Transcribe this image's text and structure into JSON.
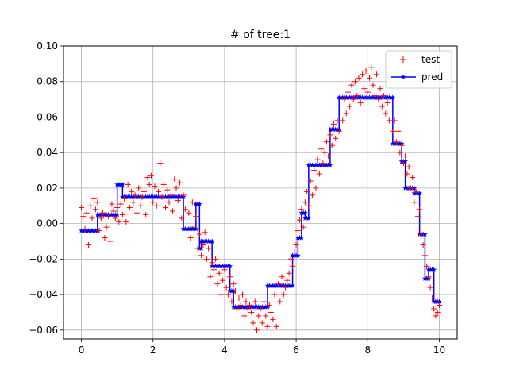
{
  "chart_data": {
    "type": "scatter",
    "title": "# of tree:1",
    "xlabel": "",
    "ylabel": "",
    "xlim": [
      -0.5,
      10.5
    ],
    "ylim": [
      -0.065,
      0.1
    ],
    "x_ticks": [
      0,
      2,
      4,
      6,
      8,
      10
    ],
    "x_tick_labels": [
      "0",
      "2",
      "4",
      "6",
      "8",
      "10"
    ],
    "y_ticks": [
      -0.06,
      -0.04,
      -0.02,
      0.0,
      0.02,
      0.04,
      0.06,
      0.08,
      0.1
    ],
    "y_tick_labels": [
      "−0.06",
      "−0.04",
      "−0.02",
      "0.00",
      "0.02",
      "0.04",
      "0.06",
      "0.08",
      "0.10"
    ],
    "grid": true,
    "legend_position": "top-right",
    "series": [
      {
        "name": "test",
        "marker": "+",
        "color": "#ff0000",
        "points": [
          [
            0.0,
            0.009
          ],
          [
            0.05,
            0.004
          ],
          [
            0.1,
            -0.003
          ],
          [
            0.15,
            0.006
          ],
          [
            0.2,
            -0.012
          ],
          [
            0.25,
            0.01
          ],
          [
            0.3,
            0.003
          ],
          [
            0.35,
            0.014
          ],
          [
            0.4,
            0.008
          ],
          [
            0.45,
            0.012
          ],
          [
            0.5,
            -0.004
          ],
          [
            0.55,
            0.003
          ],
          [
            0.6,
            0.006
          ],
          [
            0.65,
            -0.008
          ],
          [
            0.7,
            -0.002
          ],
          [
            0.75,
            0.004
          ],
          [
            0.8,
            -0.01
          ],
          [
            0.85,
            0.011
          ],
          [
            0.9,
            0.007
          ],
          [
            0.95,
            0.003
          ],
          [
            1.0,
            0.009
          ],
          [
            1.05,
            0.001
          ],
          [
            1.1,
            0.011
          ],
          [
            1.15,
            0.005
          ],
          [
            1.2,
            0.014
          ],
          [
            1.25,
            0.001
          ],
          [
            1.3,
            0.022
          ],
          [
            1.35,
            0.009
          ],
          [
            1.4,
            0.018
          ],
          [
            1.45,
            0.012
          ],
          [
            1.5,
            0.016
          ],
          [
            1.55,
            0.006
          ],
          [
            1.6,
            0.02
          ],
          [
            1.65,
            0.01
          ],
          [
            1.7,
            0.015
          ],
          [
            1.75,
            0.018
          ],
          [
            1.8,
            0.005
          ],
          [
            1.85,
            0.026
          ],
          [
            1.9,
            0.022
          ],
          [
            1.95,
            0.027
          ],
          [
            2.0,
            0.012
          ],
          [
            2.05,
            0.021
          ],
          [
            2.1,
            0.01
          ],
          [
            2.15,
            0.018
          ],
          [
            2.2,
            0.034
          ],
          [
            2.25,
            0.015
          ],
          [
            2.3,
            0.022
          ],
          [
            2.35,
            0.009
          ],
          [
            2.4,
            0.019
          ],
          [
            2.45,
            0.012
          ],
          [
            2.5,
            0.016
          ],
          [
            2.55,
            0.007
          ],
          [
            2.6,
            0.025
          ],
          [
            2.65,
            0.02
          ],
          [
            2.7,
            0.013
          ],
          [
            2.75,
            0.023
          ],
          [
            2.8,
            0.003
          ],
          [
            2.85,
            0.016
          ],
          [
            2.9,
            0.008
          ],
          [
            2.95,
            -0.003
          ],
          [
            3.0,
            0.006
          ],
          [
            3.05,
            -0.008
          ],
          [
            3.1,
            0.012
          ],
          [
            3.15,
            -0.002
          ],
          [
            3.2,
            0.004
          ],
          [
            3.25,
            -0.014
          ],
          [
            3.3,
            -0.006
          ],
          [
            3.35,
            -0.018
          ],
          [
            3.4,
            -0.012
          ],
          [
            3.45,
            -0.005
          ],
          [
            3.5,
            -0.02
          ],
          [
            3.55,
            -0.014
          ],
          [
            3.6,
            -0.03
          ],
          [
            3.65,
            -0.022
          ],
          [
            3.7,
            -0.026
          ],
          [
            3.75,
            -0.02
          ],
          [
            3.8,
            -0.034
          ],
          [
            3.85,
            -0.028
          ],
          [
            3.9,
            -0.04
          ],
          [
            3.95,
            -0.032
          ],
          [
            4.0,
            -0.026
          ],
          [
            4.05,
            -0.036
          ],
          [
            4.1,
            -0.04
          ],
          [
            4.15,
            -0.03
          ],
          [
            4.2,
            -0.044
          ],
          [
            4.25,
            -0.034
          ],
          [
            4.3,
            -0.038
          ],
          [
            4.35,
            -0.048
          ],
          [
            4.4,
            -0.042
          ],
          [
            4.45,
            -0.046
          ],
          [
            4.5,
            -0.04
          ],
          [
            4.55,
            -0.052
          ],
          [
            4.6,
            -0.044
          ],
          [
            4.65,
            -0.048
          ],
          [
            4.7,
            -0.046
          ],
          [
            4.75,
            -0.05
          ],
          [
            4.8,
            -0.056
          ],
          [
            4.85,
            -0.044
          ],
          [
            4.9,
            -0.06
          ],
          [
            4.95,
            -0.052
          ],
          [
            5.0,
            -0.048
          ],
          [
            5.05,
            -0.056
          ],
          [
            5.1,
            -0.044
          ],
          [
            5.15,
            -0.052
          ],
          [
            5.2,
            -0.058
          ],
          [
            5.25,
            -0.046
          ],
          [
            5.3,
            -0.05
          ],
          [
            5.35,
            -0.054
          ],
          [
            5.4,
            -0.04
          ],
          [
            5.45,
            -0.058
          ],
          [
            5.5,
            -0.034
          ],
          [
            5.55,
            -0.044
          ],
          [
            5.6,
            -0.03
          ],
          [
            5.65,
            -0.04
          ],
          [
            5.7,
            -0.036
          ],
          [
            5.75,
            -0.032
          ],
          [
            5.8,
            -0.028
          ],
          [
            5.85,
            -0.02
          ],
          [
            5.9,
            -0.024
          ],
          [
            5.95,
            -0.016
          ],
          [
            6.0,
            -0.012
          ],
          [
            6.05,
            -0.004
          ],
          [
            6.1,
            0.002
          ],
          [
            6.15,
            0.008
          ],
          [
            6.2,
            -0.002
          ],
          [
            6.25,
            0.012
          ],
          [
            6.3,
            0.018
          ],
          [
            6.35,
            0.01
          ],
          [
            6.4,
            0.024
          ],
          [
            6.45,
            0.016
          ],
          [
            6.5,
            0.03
          ],
          [
            6.55,
            0.02
          ],
          [
            6.6,
            0.036
          ],
          [
            6.65,
            0.028
          ],
          [
            6.7,
            0.042
          ],
          [
            6.75,
            0.034
          ],
          [
            6.8,
            0.04
          ],
          [
            6.85,
            0.046
          ],
          [
            6.9,
            0.038
          ],
          [
            6.95,
            0.05
          ],
          [
            7.0,
            0.044
          ],
          [
            7.05,
            0.056
          ],
          [
            7.1,
            0.048
          ],
          [
            7.15,
            0.058
          ],
          [
            7.2,
            0.052
          ],
          [
            7.25,
            0.064
          ],
          [
            7.3,
            0.058
          ],
          [
            7.35,
            0.07
          ],
          [
            7.4,
            0.062
          ],
          [
            7.45,
            0.074
          ],
          [
            7.5,
            0.066
          ],
          [
            7.55,
            0.078
          ],
          [
            7.6,
            0.07
          ],
          [
            7.65,
            0.08
          ],
          [
            7.7,
            0.072
          ],
          [
            7.75,
            0.082
          ],
          [
            7.8,
            0.068
          ],
          [
            7.85,
            0.084
          ],
          [
            7.9,
            0.076
          ],
          [
            7.95,
            0.086
          ],
          [
            8.0,
            0.074
          ],
          [
            8.05,
            0.082
          ],
          [
            8.1,
            0.088
          ],
          [
            8.15,
            0.078
          ],
          [
            8.2,
            0.072
          ],
          [
            8.25,
            0.084
          ],
          [
            8.3,
            0.07
          ],
          [
            8.35,
            0.076
          ],
          [
            8.4,
            0.066
          ],
          [
            8.45,
            0.072
          ],
          [
            8.5,
            0.062
          ],
          [
            8.55,
            0.068
          ],
          [
            8.6,
            0.058
          ],
          [
            8.65,
            0.064
          ],
          [
            8.7,
            0.052
          ],
          [
            8.75,
            0.058
          ],
          [
            8.8,
            0.046
          ],
          [
            8.85,
            0.052
          ],
          [
            8.9,
            0.04
          ],
          [
            8.95,
            0.044
          ],
          [
            9.0,
            0.034
          ],
          [
            9.05,
            0.038
          ],
          [
            9.1,
            0.028
          ],
          [
            9.15,
            0.032
          ],
          [
            9.2,
            0.02
          ],
          [
            9.25,
            0.026
          ],
          [
            9.3,
            0.012
          ],
          [
            9.35,
            0.018
          ],
          [
            9.4,
            0.004
          ],
          [
            9.45,
            0.008
          ],
          [
            9.5,
            -0.006
          ],
          [
            9.55,
            -0.012
          ],
          [
            9.6,
            -0.018
          ],
          [
            9.65,
            -0.024
          ],
          [
            9.7,
            -0.03
          ],
          [
            9.75,
            -0.036
          ],
          [
            9.8,
            -0.042
          ],
          [
            9.85,
            -0.048
          ],
          [
            9.9,
            -0.052
          ],
          [
            9.95,
            -0.05
          ],
          [
            10.0,
            -0.046
          ]
        ]
      },
      {
        "name": "pred",
        "marker": "*",
        "color": "#0000ff",
        "steps": [
          {
            "x0": 0.0,
            "x1": 0.45,
            "y": -0.004
          },
          {
            "x0": 0.45,
            "x1": 1.0,
            "y": 0.005
          },
          {
            "x0": 1.0,
            "x1": 1.15,
            "y": 0.022
          },
          {
            "x0": 1.15,
            "x1": 2.85,
            "y": 0.015
          },
          {
            "x0": 2.85,
            "x1": 3.2,
            "y": -0.003
          },
          {
            "x0": 3.2,
            "x1": 3.3,
            "y": 0.011
          },
          {
            "x0": 3.3,
            "x1": 3.35,
            "y": -0.014
          },
          {
            "x0": 3.35,
            "x1": 3.65,
            "y": -0.01
          },
          {
            "x0": 3.65,
            "x1": 4.15,
            "y": -0.024
          },
          {
            "x0": 4.15,
            "x1": 4.25,
            "y": -0.038
          },
          {
            "x0": 4.25,
            "x1": 5.2,
            "y": -0.047
          },
          {
            "x0": 5.2,
            "x1": 5.9,
            "y": -0.035
          },
          {
            "x0": 5.9,
            "x1": 6.05,
            "y": -0.018
          },
          {
            "x0": 6.05,
            "x1": 6.15,
            "y": -0.008
          },
          {
            "x0": 6.15,
            "x1": 6.25,
            "y": 0.006
          },
          {
            "x0": 6.25,
            "x1": 6.35,
            "y": 0.003
          },
          {
            "x0": 6.35,
            "x1": 6.95,
            "y": 0.033
          },
          {
            "x0": 6.95,
            "x1": 7.2,
            "y": 0.053
          },
          {
            "x0": 7.2,
            "x1": 8.7,
            "y": 0.071
          },
          {
            "x0": 8.7,
            "x1": 8.95,
            "y": 0.045
          },
          {
            "x0": 8.95,
            "x1": 9.05,
            "y": 0.035
          },
          {
            "x0": 9.05,
            "x1": 9.3,
            "y": 0.02
          },
          {
            "x0": 9.3,
            "x1": 9.45,
            "y": 0.017
          },
          {
            "x0": 9.45,
            "x1": 9.6,
            "y": -0.006
          },
          {
            "x0": 9.6,
            "x1": 9.7,
            "y": -0.031
          },
          {
            "x0": 9.7,
            "x1": 9.85,
            "y": -0.026
          },
          {
            "x0": 9.85,
            "x1": 10.0,
            "y": -0.044
          }
        ]
      }
    ]
  }
}
